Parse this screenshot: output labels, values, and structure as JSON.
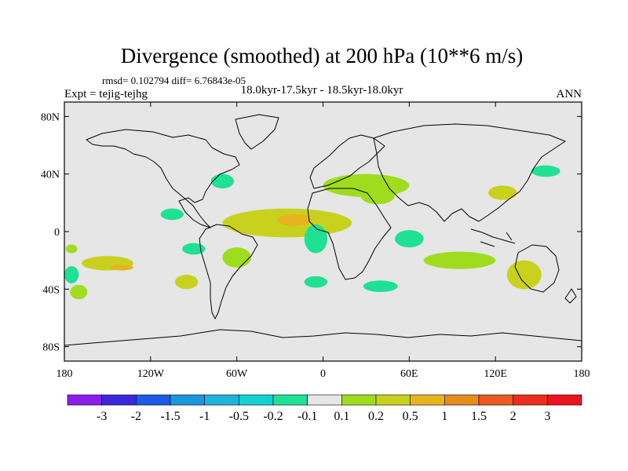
{
  "chart_data": {
    "type": "heatmap",
    "title": "Divergence (smoothed) at 200 hPa (10**6 m/s)",
    "stats": "rmsd= 0.102794 diff= 6.76843e-05",
    "period": "18.0kyr-17.5kyr - 18.5kyr-18.0kyr",
    "experiment": "Expt = tejig-tejhg",
    "season": "ANN",
    "x_ticks": [
      "180",
      "120W",
      "60W",
      "0",
      "60E",
      "120E",
      "180"
    ],
    "x_tick_values": [
      -180,
      -120,
      -60,
      0,
      60,
      120,
      180
    ],
    "y_ticks": [
      "80N",
      "40N",
      "0",
      "40S",
      "80S"
    ],
    "y_tick_values": [
      80,
      40,
      0,
      -40,
      -80
    ],
    "xlim": [
      -180,
      180
    ],
    "ylim": [
      -90,
      90
    ],
    "colorbar": {
      "labels": [
        "-3",
        "-2",
        "-1.5",
        "-1",
        "-0.5",
        "-0.2",
        "-0.1",
        "0.1",
        "0.2",
        "0.5",
        "1",
        "1.5",
        "2",
        "3"
      ],
      "colors": [
        "#8c1eeb",
        "#3c28dc",
        "#1e5ae6",
        "#1e96dc",
        "#1eb4dc",
        "#14d2d2",
        "#1ee196",
        "#e6e6e6",
        "#a0dc1e",
        "#c8d21e",
        "#e6b41e",
        "#e68c1e",
        "#eb5a1e",
        "#eb2d1e",
        "#eb141e"
      ]
    },
    "fields": [
      {
        "sign": "positive",
        "level": 1,
        "lon": -175,
        "lat": -12,
        "dlon": 4,
        "dlat": 3
      },
      {
        "sign": "positive",
        "level": 2,
        "lon": -150,
        "lat": -22,
        "dlon": 18,
        "dlat": 5
      },
      {
        "sign": "positive",
        "level": 3,
        "lon": -140,
        "lat": -25,
        "dlon": 8,
        "dlat": 2
      },
      {
        "sign": "positive",
        "level": 2,
        "lon": -95,
        "lat": -35,
        "dlon": 8,
        "dlat": 5
      },
      {
        "sign": "positive",
        "level": 2,
        "lon": -25,
        "lat": 6,
        "dlon": 45,
        "dlat": 10
      },
      {
        "sign": "positive",
        "level": 3,
        "lon": -20,
        "lat": 8,
        "dlon": 12,
        "dlat": 4
      },
      {
        "sign": "positive",
        "level": 1,
        "lon": -60,
        "lat": -18,
        "dlon": 10,
        "dlat": 7
      },
      {
        "sign": "positive",
        "level": 1,
        "lon": 30,
        "lat": 32,
        "dlon": 30,
        "dlat": 8
      },
      {
        "sign": "positive",
        "level": 1,
        "lon": 38,
        "lat": 25,
        "dlon": 12,
        "dlat": 6
      },
      {
        "sign": "positive",
        "level": 2,
        "lon": 125,
        "lat": 27,
        "dlon": 10,
        "dlat": 5
      },
      {
        "sign": "positive",
        "level": 2,
        "lon": 140,
        "lat": -30,
        "dlon": 12,
        "dlat": 10
      },
      {
        "sign": "positive",
        "level": 1,
        "lon": 95,
        "lat": -20,
        "dlon": 25,
        "dlat": 6
      },
      {
        "sign": "positive",
        "level": 1,
        "lon": -170,
        "lat": -42,
        "dlon": 6,
        "dlat": 5
      },
      {
        "sign": "negative",
        "level": 1,
        "lon": -5,
        "lat": -5,
        "dlon": 8,
        "dlat": 10
      },
      {
        "sign": "negative",
        "level": 1,
        "lon": -105,
        "lat": 12,
        "dlon": 8,
        "dlat": 4
      },
      {
        "sign": "negative",
        "level": 1,
        "lon": 60,
        "lat": -5,
        "dlon": 10,
        "dlat": 6
      },
      {
        "sign": "negative",
        "level": 1,
        "lon": -70,
        "lat": 35,
        "dlon": 8,
        "dlat": 5
      },
      {
        "sign": "negative",
        "level": 1,
        "lon": -5,
        "lat": -35,
        "dlon": 8,
        "dlat": 4
      },
      {
        "sign": "negative",
        "level": 1,
        "lon": 40,
        "lat": -38,
        "dlon": 12,
        "dlat": 4
      },
      {
        "sign": "negative",
        "level": 1,
        "lon": -175,
        "lat": -30,
        "dlon": 5,
        "dlat": 6
      },
      {
        "sign": "negative",
        "level": 1,
        "lon": 155,
        "lat": 42,
        "dlon": 10,
        "dlat": 4
      },
      {
        "sign": "negative",
        "level": 1,
        "lon": -90,
        "lat": -12,
        "dlon": 8,
        "dlat": 4
      }
    ]
  }
}
